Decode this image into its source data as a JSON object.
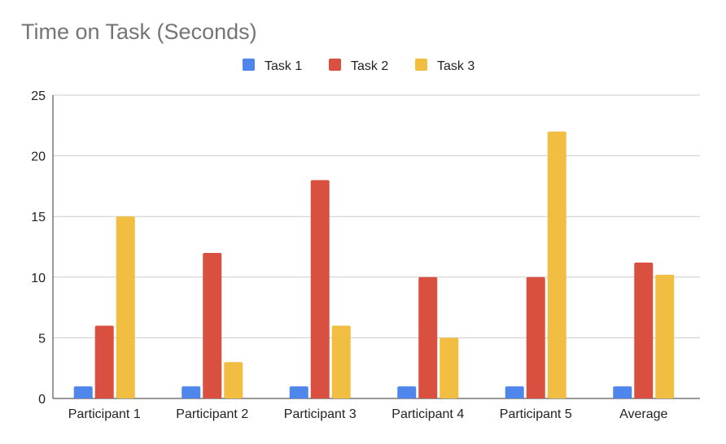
{
  "chart_data": {
    "type": "bar",
    "title": "Time on Task (Seconds)",
    "xlabel": "",
    "ylabel": "",
    "ylim": [
      0,
      25
    ],
    "yticks": [
      0,
      5,
      10,
      15,
      20,
      25
    ],
    "grid": true,
    "legend_position": "top-center",
    "categories": [
      "Participant 1",
      "Participant 2",
      "Participant 3",
      "Participant 4",
      "Participant 5",
      "Average"
    ],
    "series": [
      {
        "name": "Task 1",
        "color": "#4f86ec",
        "values": [
          1,
          1,
          1,
          1,
          1,
          1
        ]
      },
      {
        "name": "Task 2",
        "color": "#d95040",
        "values": [
          6,
          12,
          18,
          10,
          10,
          11.2
        ]
      },
      {
        "name": "Task 3",
        "color": "#f2be42",
        "values": [
          15,
          3,
          6,
          5,
          22,
          10.2
        ]
      }
    ]
  }
}
